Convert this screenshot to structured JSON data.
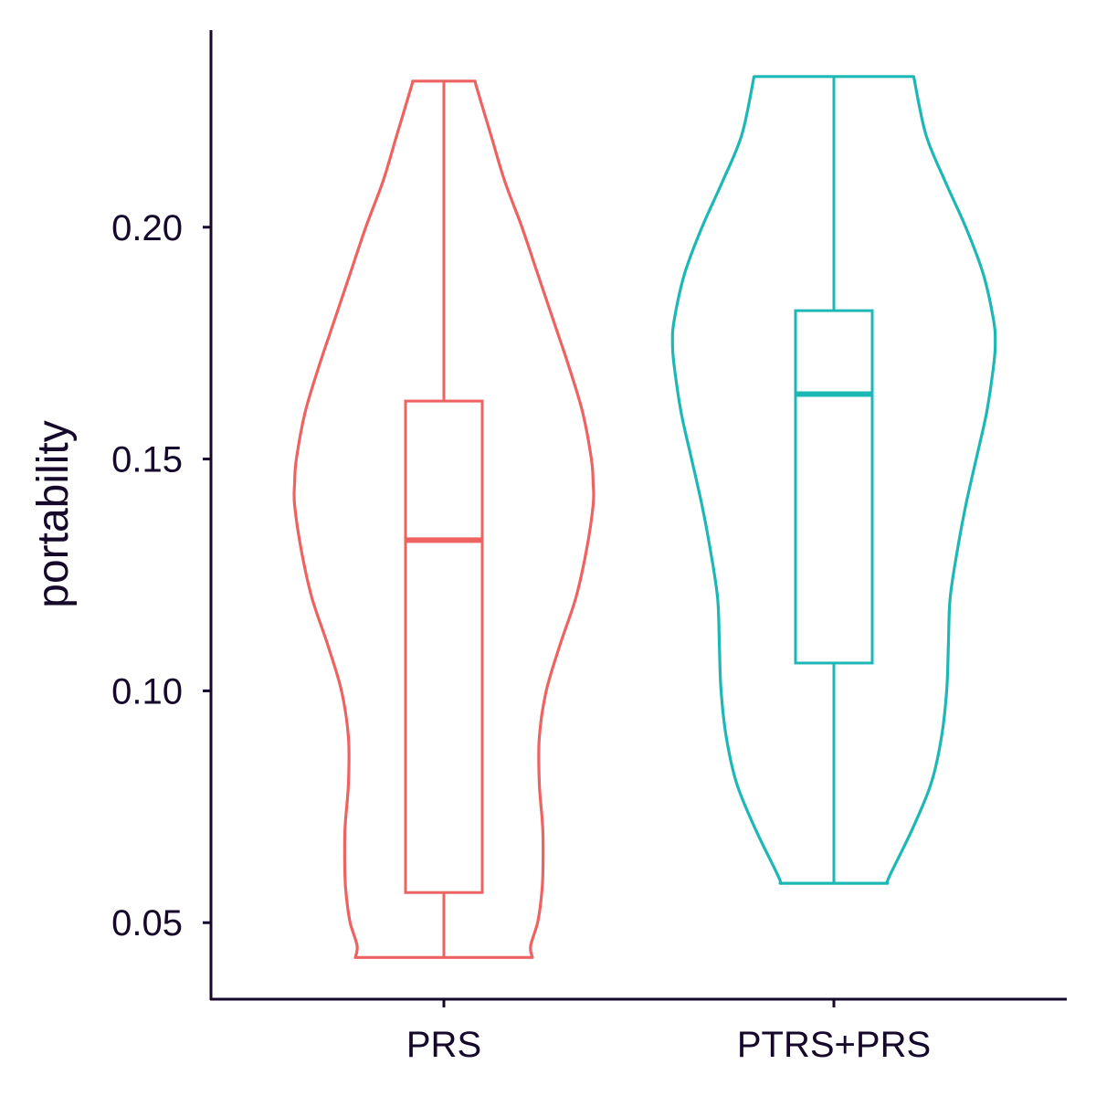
{
  "chart_data": {
    "type": "violin",
    "title": "",
    "xlabel": "",
    "ylabel": "portability",
    "ylim": [
      0.0335,
      0.2425
    ],
    "yticks": [
      0.05,
      0.1,
      0.15,
      0.2
    ],
    "ytick_labels": [
      "0.05",
      "0.10",
      "0.15",
      "0.20"
    ],
    "categories": [
      "PRS",
      "PTRS+PRS"
    ],
    "axis_color": "#15082b",
    "text_color": "#15082b",
    "series": [
      {
        "name": "PRS",
        "color": "#ee6361",
        "box": {
          "min": 0.0425,
          "q1": 0.0565,
          "median": 0.1325,
          "q3": 0.1625,
          "max": 0.2315
        },
        "density_profile": [
          [
            0.0425,
            0.51
          ],
          [
            0.045,
            0.5
          ],
          [
            0.05,
            0.54
          ],
          [
            0.055,
            0.56
          ],
          [
            0.06,
            0.57
          ],
          [
            0.07,
            0.57
          ],
          [
            0.08,
            0.55
          ],
          [
            0.09,
            0.55
          ],
          [
            0.1,
            0.59
          ],
          [
            0.11,
            0.67
          ],
          [
            0.12,
            0.76
          ],
          [
            0.13,
            0.82
          ],
          [
            0.14,
            0.86
          ],
          [
            0.145,
            0.86
          ],
          [
            0.15,
            0.85
          ],
          [
            0.16,
            0.8
          ],
          [
            0.17,
            0.72
          ],
          [
            0.18,
            0.63
          ],
          [
            0.19,
            0.54
          ],
          [
            0.2,
            0.45
          ],
          [
            0.21,
            0.35
          ],
          [
            0.22,
            0.27
          ],
          [
            0.23,
            0.19
          ],
          [
            0.2315,
            0.18
          ]
        ]
      },
      {
        "name": "PTRS+PRS",
        "color": "#1db8b6",
        "box": {
          "min": 0.0585,
          "q1": 0.106,
          "median": 0.164,
          "q3": 0.182,
          "max": 0.2325
        },
        "density_profile": [
          [
            0.0585,
            0.31
          ],
          [
            0.06,
            0.32
          ],
          [
            0.07,
            0.45
          ],
          [
            0.08,
            0.56
          ],
          [
            0.09,
            0.62
          ],
          [
            0.1,
            0.65
          ],
          [
            0.11,
            0.66
          ],
          [
            0.12,
            0.67
          ],
          [
            0.13,
            0.71
          ],
          [
            0.14,
            0.76
          ],
          [
            0.15,
            0.82
          ],
          [
            0.16,
            0.88
          ],
          [
            0.17,
            0.92
          ],
          [
            0.175,
            0.93
          ],
          [
            0.18,
            0.92
          ],
          [
            0.19,
            0.86
          ],
          [
            0.2,
            0.76
          ],
          [
            0.21,
            0.64
          ],
          [
            0.22,
            0.53
          ],
          [
            0.2325,
            0.46
          ]
        ]
      }
    ]
  }
}
